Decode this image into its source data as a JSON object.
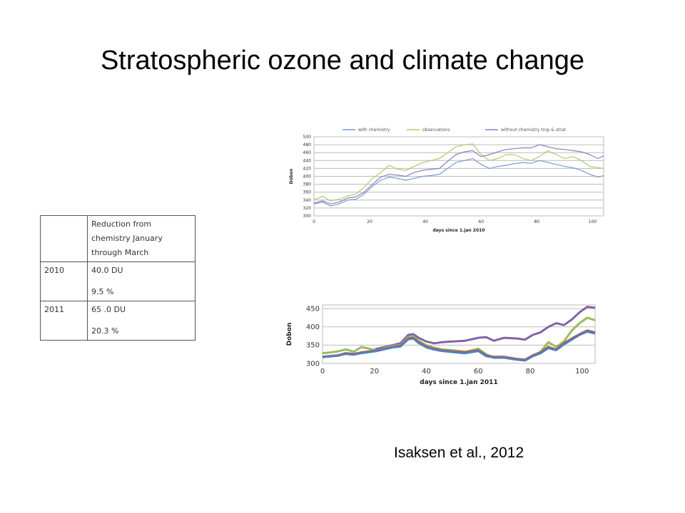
{
  "title": "Stratospheric ozone and climate change",
  "citation": "Isaksen et al., 2012",
  "table": {
    "header": [
      "",
      "Reduction from chemistry January through March"
    ],
    "rows": [
      {
        "year": "2010",
        "du": "40.0 DU",
        "pct": "9.5 %"
      },
      {
        "year": "2011",
        "du": "65   .0 DU",
        "pct": "20.3 %"
      }
    ]
  },
  "chart_data": [
    {
      "type": "line",
      "xlabel": "days since 1.jan 2010",
      "ylabel": "Dobon",
      "xlim": [
        0,
        104
      ],
      "ylim": [
        300,
        500
      ],
      "xticks": [
        0,
        20,
        40,
        60,
        80,
        100
      ],
      "yticks": [
        300,
        320,
        340,
        360,
        380,
        400,
        420,
        440,
        460,
        480,
        500
      ],
      "grid": true,
      "legend": "top",
      "series": [
        {
          "name": "with chemistry",
          "color": "#7b98d4",
          "x": [
            0,
            3,
            6,
            9,
            12,
            15,
            18,
            21,
            24,
            27,
            30,
            33,
            36,
            39,
            42,
            45,
            48,
            51,
            54,
            57,
            60,
            63,
            66,
            69,
            72,
            75,
            78,
            81,
            84,
            87,
            90,
            93,
            96,
            99,
            102,
            104
          ],
          "y": [
            330,
            335,
            325,
            330,
            340,
            342,
            355,
            375,
            390,
            398,
            395,
            390,
            395,
            400,
            402,
            405,
            420,
            435,
            440,
            445,
            430,
            420,
            425,
            428,
            432,
            435,
            433,
            440,
            435,
            430,
            425,
            422,
            415,
            405,
            398,
            402
          ]
        },
        {
          "name": "observations",
          "color": "#b3c96c",
          "x": [
            0,
            3,
            6,
            9,
            12,
            15,
            18,
            21,
            24,
            27,
            30,
            33,
            36,
            39,
            42,
            45,
            48,
            51,
            54,
            57,
            60,
            63,
            66,
            69,
            72,
            75,
            78,
            81,
            84,
            87,
            90,
            93,
            96,
            99,
            102,
            104
          ],
          "y": [
            340,
            350,
            338,
            342,
            350,
            355,
            372,
            395,
            410,
            428,
            418,
            415,
            425,
            435,
            440,
            445,
            460,
            475,
            480,
            482,
            455,
            440,
            445,
            455,
            455,
            445,
            440,
            450,
            465,
            455,
            445,
            450,
            440,
            425,
            422,
            420
          ]
        },
        {
          "name": "without chemistry trop & strat",
          "color": "#8a7cc4",
          "x": [
            0,
            3,
            6,
            9,
            12,
            15,
            18,
            21,
            24,
            27,
            30,
            33,
            36,
            39,
            42,
            45,
            48,
            51,
            54,
            57,
            60,
            63,
            66,
            69,
            72,
            75,
            78,
            81,
            84,
            87,
            90,
            93,
            96,
            99,
            102,
            104
          ],
          "y": [
            332,
            338,
            330,
            335,
            345,
            348,
            360,
            380,
            398,
            405,
            403,
            400,
            410,
            415,
            418,
            420,
            438,
            455,
            462,
            465,
            450,
            455,
            462,
            468,
            470,
            472,
            472,
            480,
            475,
            470,
            468,
            465,
            462,
            455,
            445,
            452
          ]
        }
      ]
    },
    {
      "type": "line",
      "xlabel": "days since 1.jan 2011",
      "ylabel": "Dobon",
      "xlim": [
        0,
        105
      ],
      "ylim": [
        300,
        460
      ],
      "xticks": [
        0,
        20,
        40,
        60,
        80,
        100
      ],
      "yticks": [
        300,
        350,
        400,
        450
      ],
      "grid": true,
      "series": [
        {
          "color": "#8064a2",
          "x": [
            0,
            3,
            6,
            9,
            12,
            15,
            18,
            21,
            24,
            27,
            30,
            33,
            35,
            37,
            40,
            43,
            46,
            50,
            55,
            60,
            63,
            66,
            70,
            75,
            78,
            81,
            84,
            87,
            90,
            93,
            96,
            99,
            102,
            105
          ],
          "y": [
            318,
            320,
            322,
            328,
            325,
            330,
            332,
            340,
            345,
            350,
            355,
            378,
            380,
            370,
            360,
            355,
            358,
            360,
            362,
            370,
            372,
            362,
            370,
            368,
            365,
            378,
            385,
            400,
            410,
            405,
            420,
            440,
            455,
            452
          ]
        },
        {
          "color": "#9bbb59",
          "x": [
            0,
            3,
            6,
            9,
            12,
            15,
            18,
            21,
            24,
            27,
            30,
            33,
            35,
            37,
            40,
            43,
            46,
            50,
            55,
            60,
            63,
            66,
            70,
            75,
            78,
            81,
            84,
            87,
            90,
            93,
            96,
            99,
            102,
            105
          ],
          "y": [
            328,
            330,
            333,
            338,
            332,
            345,
            340,
            335,
            342,
            348,
            350,
            372,
            374,
            362,
            350,
            343,
            338,
            336,
            332,
            340,
            325,
            315,
            315,
            310,
            308,
            320,
            332,
            358,
            345,
            360,
            390,
            410,
            425,
            418
          ]
        },
        {
          "color": "#c0504d",
          "x": [
            0,
            3,
            6,
            9,
            12,
            15,
            18,
            21,
            24,
            27,
            30,
            33,
            35,
            37,
            40,
            43,
            46,
            50,
            55,
            60,
            63,
            66,
            70,
            75,
            78,
            81,
            84,
            87,
            90,
            93,
            96,
            99,
            102,
            105
          ],
          "y": [
            318,
            320,
            322,
            328,
            326,
            330,
            333,
            335,
            340,
            345,
            348,
            368,
            370,
            358,
            346,
            340,
            336,
            333,
            330,
            336,
            322,
            318,
            318,
            312,
            310,
            322,
            330,
            345,
            338,
            355,
            368,
            380,
            390,
            385
          ]
        },
        {
          "color": "#4f81bd",
          "x": [
            0,
            3,
            6,
            9,
            12,
            15,
            18,
            21,
            24,
            27,
            30,
            33,
            35,
            37,
            40,
            43,
            46,
            50,
            55,
            60,
            63,
            66,
            70,
            75,
            78,
            81,
            84,
            87,
            90,
            93,
            96,
            99,
            102,
            105
          ],
          "y": [
            317,
            319,
            321,
            326,
            324,
            328,
            331,
            334,
            339,
            344,
            346,
            366,
            368,
            356,
            344,
            338,
            334,
            331,
            328,
            334,
            320,
            316,
            316,
            310,
            308,
            320,
            328,
            342,
            336,
            352,
            365,
            378,
            387,
            382
          ]
        }
      ]
    }
  ]
}
